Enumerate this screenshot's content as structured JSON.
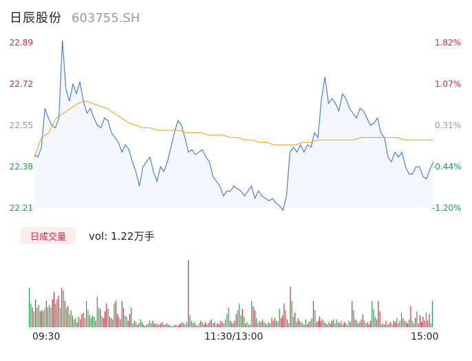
{
  "header": {
    "name": "日辰股份",
    "code": "603755.SH"
  },
  "chart_data": {
    "type": "line",
    "price_axis": {
      "ticks": [
        {
          "label": "22.89",
          "value": 22.89,
          "pct": "1.82%",
          "trend": "up"
        },
        {
          "label": "22.72",
          "value": 22.72,
          "pct": "1.07%",
          "trend": "up"
        },
        {
          "label": "22.55",
          "value": 22.55,
          "pct": "0.31%",
          "trend": "flat"
        },
        {
          "label": "22.38",
          "value": 22.38,
          "pct": "-0.44%",
          "trend": "down"
        },
        {
          "label": "22.21",
          "value": 22.21,
          "pct": "-1.20%",
          "trend": "down"
        }
      ],
      "ylim": [
        22.21,
        22.89
      ]
    },
    "series": [
      {
        "values": [
          22.43,
          22.42,
          22.46,
          22.62,
          22.58,
          22.55,
          22.54,
          22.58,
          22.9,
          22.7,
          22.65,
          22.72,
          22.68,
          22.73,
          22.65,
          22.6,
          22.62,
          22.58,
          22.55,
          22.54,
          22.58,
          22.57,
          22.52,
          22.5,
          22.48,
          22.44,
          22.47,
          22.45,
          22.4,
          22.36,
          22.3,
          22.38,
          22.4,
          22.42,
          22.36,
          22.32,
          22.38,
          22.36,
          22.4,
          22.46,
          22.52,
          22.57,
          22.55,
          22.5,
          22.44,
          22.45,
          22.43,
          22.44,
          22.45,
          22.42,
          22.4,
          22.34,
          22.32,
          22.3,
          22.26,
          22.28,
          22.28,
          22.3,
          22.29,
          22.28,
          22.26,
          22.28,
          22.3,
          22.25,
          22.28,
          22.26,
          22.25,
          22.24,
          22.25,
          22.23,
          22.22,
          22.2,
          22.26,
          22.44,
          22.46,
          22.44,
          22.47,
          22.44,
          22.47,
          22.46,
          22.52,
          22.5,
          22.66,
          22.75,
          22.64,
          22.66,
          22.64,
          22.61,
          22.68,
          22.66,
          22.62,
          22.6,
          22.58,
          22.62,
          22.61,
          22.58,
          22.55,
          22.56,
          22.58,
          22.52,
          22.5,
          22.42,
          22.4,
          22.44,
          22.42,
          22.44,
          22.38,
          22.35,
          22.35,
          22.38,
          22.38,
          22.34,
          22.33,
          22.37,
          22.4
        ],
        "color": "#3a75dd"
      },
      {
        "values": [
          22.42,
          22.5,
          22.52,
          22.58,
          22.6,
          22.62,
          22.64,
          22.65,
          22.64,
          22.63,
          22.62,
          22.6,
          22.58,
          22.56,
          22.55,
          22.54,
          22.54,
          22.53,
          22.53,
          22.53,
          22.53,
          22.52,
          22.52,
          22.52,
          22.51,
          22.51,
          22.51,
          22.5,
          22.5,
          22.49,
          22.49,
          22.48,
          22.48,
          22.47,
          22.47,
          22.47,
          22.47,
          22.48,
          22.48,
          22.49,
          22.49,
          22.49,
          22.49,
          22.49,
          22.49,
          22.5,
          22.5,
          22.5,
          22.5,
          22.5,
          22.5,
          22.49,
          22.49,
          22.49,
          22.49,
          22.49
        ],
        "color": "#f0a526"
      }
    ],
    "volume": {
      "label": "日成交量",
      "summary": "vol: 1.22万手",
      "ylim": [
        0,
        110
      ],
      "bars": [
        [
          60,
          "g"
        ],
        [
          36,
          "g"
        ],
        [
          30,
          "r"
        ],
        [
          24,
          "g"
        ],
        [
          42,
          "r"
        ],
        [
          30,
          "g"
        ],
        [
          34,
          "g"
        ],
        [
          24,
          "r"
        ],
        [
          26,
          "r"
        ],
        [
          24,
          "g"
        ],
        [
          28,
          "g"
        ],
        [
          40,
          "r"
        ],
        [
          30,
          "r"
        ],
        [
          34,
          "g"
        ],
        [
          30,
          "g"
        ],
        [
          42,
          "r"
        ],
        [
          54,
          "r"
        ],
        [
          36,
          "g"
        ],
        [
          42,
          "r"
        ],
        [
          48,
          "r"
        ],
        [
          30,
          "g"
        ],
        [
          60,
          "r"
        ],
        [
          56,
          "g"
        ],
        [
          40,
          "r"
        ],
        [
          30,
          "g"
        ],
        [
          32,
          "r"
        ],
        [
          20,
          "g"
        ],
        [
          26,
          "g"
        ],
        [
          18,
          "r"
        ],
        [
          12,
          "g"
        ],
        [
          14,
          "g"
        ],
        [
          8,
          "r"
        ],
        [
          16,
          "g"
        ],
        [
          12,
          "r"
        ],
        [
          20,
          "r"
        ],
        [
          22,
          "r"
        ],
        [
          14,
          "g"
        ],
        [
          40,
          "g"
        ],
        [
          26,
          "g"
        ],
        [
          18,
          "r"
        ],
        [
          14,
          "g"
        ],
        [
          18,
          "g"
        ],
        [
          16,
          "g"
        ],
        [
          10,
          "r"
        ],
        [
          46,
          "g"
        ],
        [
          30,
          "g"
        ],
        [
          28,
          "r"
        ],
        [
          16,
          "g"
        ],
        [
          14,
          "r"
        ],
        [
          24,
          "r"
        ],
        [
          36,
          "r"
        ],
        [
          28,
          "g"
        ],
        [
          16,
          "r"
        ],
        [
          14,
          "r"
        ],
        [
          12,
          "r"
        ],
        [
          36,
          "g"
        ],
        [
          40,
          "r"
        ],
        [
          20,
          "r"
        ],
        [
          16,
          "g"
        ],
        [
          12,
          "r"
        ],
        [
          40,
          "r"
        ],
        [
          30,
          "r"
        ],
        [
          18,
          "g"
        ],
        [
          16,
          "g"
        ],
        [
          10,
          "r"
        ],
        [
          20,
          "r"
        ],
        [
          30,
          "g"
        ],
        [
          6,
          "g"
        ],
        [
          10,
          "r"
        ],
        [
          8,
          "g"
        ],
        [
          4,
          "r"
        ],
        [
          6,
          "r"
        ],
        [
          12,
          "g"
        ],
        [
          8,
          "g"
        ],
        [
          4,
          "r"
        ],
        [
          2,
          "r"
        ],
        [
          4,
          "g"
        ],
        [
          6,
          "g"
        ],
        [
          10,
          "g"
        ],
        [
          6,
          "g"
        ],
        [
          10,
          "r"
        ],
        [
          5,
          "r"
        ],
        [
          6,
          "g"
        ],
        [
          4,
          "r"
        ],
        [
          4,
          "r"
        ],
        [
          6,
          "r"
        ],
        [
          8,
          "r"
        ],
        [
          4,
          "r"
        ],
        [
          4,
          "g"
        ],
        [
          6,
          "r"
        ],
        [
          4,
          "g"
        ],
        [
          3,
          "g"
        ],
        [
          2,
          "r"
        ],
        [
          2,
          "g"
        ],
        [
          3,
          "r"
        ],
        [
          4,
          "r"
        ],
        [
          2,
          "r"
        ],
        [
          4,
          "r"
        ],
        [
          6,
          "r"
        ],
        [
          8,
          "g"
        ],
        [
          6,
          "r"
        ],
        [
          4,
          "g"
        ],
        [
          8,
          "g"
        ],
        [
          102,
          "r"
        ],
        [
          18,
          "g"
        ],
        [
          10,
          "g"
        ],
        [
          6,
          "r"
        ],
        [
          8,
          "g"
        ],
        [
          4,
          "r"
        ],
        [
          2,
          "r"
        ],
        [
          6,
          "g"
        ],
        [
          10,
          "r"
        ],
        [
          8,
          "g"
        ],
        [
          4,
          "r"
        ],
        [
          8,
          "r"
        ],
        [
          4,
          "g"
        ],
        [
          6,
          "r"
        ],
        [
          10,
          "r"
        ],
        [
          12,
          "g"
        ],
        [
          6,
          "g"
        ],
        [
          8,
          "r"
        ],
        [
          4,
          "g"
        ],
        [
          6,
          "r"
        ],
        [
          4,
          "r"
        ],
        [
          10,
          "r"
        ],
        [
          8,
          "r"
        ],
        [
          6,
          "g"
        ],
        [
          12,
          "g"
        ],
        [
          20,
          "g"
        ],
        [
          30,
          "g"
        ],
        [
          10,
          "r"
        ],
        [
          8,
          "g"
        ],
        [
          6,
          "r"
        ],
        [
          10,
          "r"
        ],
        [
          20,
          "r"
        ],
        [
          26,
          "g"
        ],
        [
          36,
          "g"
        ],
        [
          18,
          "g"
        ],
        [
          28,
          "r"
        ],
        [
          16,
          "g"
        ],
        [
          6,
          "r"
        ],
        [
          8,
          "g"
        ],
        [
          4,
          "r"
        ],
        [
          4,
          "g"
        ],
        [
          40,
          "g"
        ],
        [
          32,
          "r"
        ],
        [
          26,
          "r"
        ],
        [
          14,
          "g"
        ],
        [
          6,
          "r"
        ],
        [
          10,
          "g"
        ],
        [
          8,
          "r"
        ],
        [
          12,
          "r"
        ],
        [
          8,
          "g"
        ],
        [
          6,
          "r"
        ],
        [
          4,
          "r"
        ],
        [
          8,
          "g"
        ],
        [
          6,
          "g"
        ],
        [
          14,
          "r"
        ],
        [
          10,
          "r"
        ],
        [
          14,
          "r"
        ],
        [
          10,
          "r"
        ],
        [
          8,
          "g"
        ],
        [
          28,
          "g"
        ],
        [
          14,
          "r"
        ],
        [
          18,
          "r"
        ],
        [
          36,
          "r"
        ],
        [
          26,
          "g"
        ],
        [
          12,
          "r"
        ],
        [
          6,
          "g"
        ],
        [
          62,
          "r"
        ],
        [
          40,
          "g"
        ],
        [
          16,
          "g"
        ],
        [
          22,
          "r"
        ],
        [
          8,
          "g"
        ],
        [
          14,
          "r"
        ],
        [
          10,
          "r"
        ],
        [
          8,
          "g"
        ],
        [
          6,
          "r"
        ],
        [
          4,
          "g"
        ],
        [
          12,
          "g"
        ],
        [
          4,
          "r"
        ],
        [
          8,
          "r"
        ],
        [
          10,
          "g"
        ],
        [
          14,
          "g"
        ],
        [
          40,
          "r"
        ],
        [
          26,
          "g"
        ],
        [
          8,
          "r"
        ],
        [
          10,
          "r"
        ],
        [
          16,
          "r"
        ],
        [
          10,
          "r"
        ],
        [
          12,
          "g"
        ],
        [
          8,
          "g"
        ],
        [
          6,
          "r"
        ],
        [
          4,
          "r"
        ],
        [
          8,
          "g"
        ],
        [
          6,
          "r"
        ],
        [
          10,
          "r"
        ],
        [
          12,
          "g"
        ],
        [
          6,
          "g"
        ],
        [
          12,
          "g"
        ],
        [
          8,
          "r"
        ],
        [
          6,
          "r"
        ],
        [
          10,
          "g"
        ],
        [
          4,
          "r"
        ],
        [
          8,
          "r"
        ],
        [
          6,
          "g"
        ],
        [
          4,
          "g"
        ],
        [
          10,
          "g"
        ],
        [
          8,
          "r"
        ],
        [
          40,
          "r"
        ],
        [
          26,
          "g"
        ],
        [
          12,
          "r"
        ],
        [
          10,
          "g"
        ],
        [
          6,
          "g"
        ],
        [
          8,
          "r"
        ],
        [
          12,
          "r"
        ],
        [
          20,
          "r"
        ],
        [
          10,
          "g"
        ],
        [
          6,
          "g"
        ],
        [
          8,
          "r"
        ],
        [
          4,
          "r"
        ],
        [
          10,
          "r"
        ],
        [
          40,
          "g"
        ],
        [
          28,
          "g"
        ],
        [
          16,
          "g"
        ],
        [
          12,
          "r"
        ],
        [
          40,
          "r"
        ],
        [
          24,
          "r"
        ],
        [
          4,
          "g"
        ],
        [
          6,
          "g"
        ],
        [
          4,
          "r"
        ],
        [
          10,
          "r"
        ],
        [
          4,
          "g"
        ],
        [
          6,
          "r"
        ],
        [
          8,
          "r"
        ],
        [
          4,
          "g"
        ],
        [
          10,
          "r"
        ],
        [
          8,
          "r"
        ],
        [
          14,
          "g"
        ],
        [
          6,
          "r"
        ],
        [
          10,
          "g"
        ],
        [
          22,
          "g"
        ],
        [
          14,
          "r"
        ],
        [
          10,
          "g"
        ],
        [
          8,
          "r"
        ],
        [
          6,
          "r"
        ],
        [
          12,
          "g"
        ],
        [
          32,
          "r"
        ],
        [
          10,
          "g"
        ],
        [
          6,
          "g"
        ],
        [
          14,
          "r"
        ],
        [
          24,
          "g"
        ],
        [
          6,
          "g"
        ],
        [
          18,
          "r"
        ],
        [
          8,
          "r"
        ],
        [
          16,
          "r"
        ],
        [
          10,
          "r"
        ],
        [
          22,
          "g"
        ],
        [
          10,
          "r"
        ],
        [
          20,
          "r"
        ],
        [
          6,
          "g"
        ],
        [
          40,
          "g"
        ]
      ]
    },
    "time_axis": {
      "labels": [
        "09:30",
        "11:30/13:00",
        "15:00"
      ]
    }
  }
}
